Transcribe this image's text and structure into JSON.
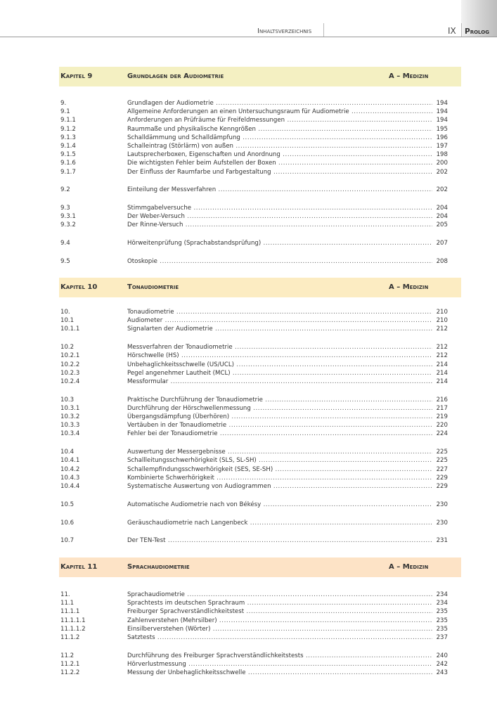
{
  "header": {
    "section": "Inhaltsverzeichnis",
    "page_number": "IX",
    "part": "Prolog"
  },
  "chapters": [
    {
      "label": "Kapitel 9",
      "title": "Grundlagen der Audiometrie",
      "category": "A – Medizin",
      "color": "#f4f0c2",
      "groups": [
        [
          {
            "num": "9.",
            "title": "Grundlagen der Audiometrie",
            "page": "194"
          },
          {
            "num": "9.1",
            "title": "Allgemeine Anforderungen an einen Untersuchungsraum für Audiometrie",
            "page": "194"
          },
          {
            "num": "9.1.1",
            "title": "Anforderungen an Prüfräume für Freifeldmessungen",
            "page": "194"
          },
          {
            "num": "9.1.2",
            "title": "Raummaße und physikalische Kenngrößen",
            "page": "195"
          },
          {
            "num": "9.1.3",
            "title": "Schalldämmung und Schalldämpfung",
            "page": "196"
          },
          {
            "num": "9.1.4",
            "title": "Schalleintrag (Störlärm) von außen",
            "page": "197"
          },
          {
            "num": "9.1.5",
            "title": "Lautsprecherboxen, Eigenschaften und Anordnung",
            "page": "198"
          },
          {
            "num": "9.1.6",
            "title": "Die wichtigsten Fehler beim Aufstellen der Boxen",
            "page": "200"
          },
          {
            "num": "9.1.7",
            "title": "Der Einfluss der Raumfarbe und Farbgestaltung",
            "page": "202"
          }
        ],
        [
          {
            "num": "9.2",
            "title": "Einteilung der Messverfahren",
            "page": "202"
          }
        ],
        [
          {
            "num": "9.3",
            "title": "Stimmgabelversuche",
            "page": "204"
          },
          {
            "num": "9.3.1",
            "title": "Der Weber-Versuch",
            "page": "204"
          },
          {
            "num": "9.3.2",
            "title": "Der Rinne-Versuch",
            "page": "205"
          }
        ],
        [
          {
            "num": "9.4",
            "title": "Hörweitenprüfung (Sprachabstandsprüfung)",
            "page": "207"
          }
        ],
        [
          {
            "num": "9.5",
            "title": "Otoskopie",
            "page": "208"
          }
        ]
      ]
    },
    {
      "label": "Kapitel 10",
      "title": "Tonaudiometrie",
      "category": "A – Medizin",
      "color": "#fcecc2",
      "groups": [
        [
          {
            "num": "10.",
            "title": "Tonaudiometrie",
            "page": "210"
          },
          {
            "num": "10.1",
            "title": "Audiometer",
            "page": "210"
          },
          {
            "num": "10.1.1",
            "title": "Signalarten der Audiometrie",
            "page": "212"
          }
        ],
        [
          {
            "num": "10.2",
            "title": "Messverfahren der Tonaudiometrie",
            "page": "212"
          },
          {
            "num": "10.2.1",
            "title": "Hörschwelle (HS)",
            "page": "212"
          },
          {
            "num": "10.2.2",
            "title": "Unbehaglichkeitsschwelle (US/UCL)",
            "page": "214"
          },
          {
            "num": "10.2.3",
            "title": "Pegel angenehmer Lautheit (MCL)",
            "page": "214"
          },
          {
            "num": "10.2.4",
            "title": "Messformular",
            "page": "214"
          }
        ],
        [
          {
            "num": "10.3",
            "title": "Praktische Durchführung der Tonaudiometrie",
            "page": "216"
          },
          {
            "num": "10.3.1",
            "title": "Durchführung der Hörschwellenmessung",
            "page": "217"
          },
          {
            "num": "10.3.2",
            "title": "Übergangsdämpfung (Überhören)",
            "page": "219"
          },
          {
            "num": "10.3.3",
            "title": "Vertäuben in der Tonaudiometrie",
            "page": "220"
          },
          {
            "num": "10.3.4",
            "title": "Fehler bei der Tonaudiometrie",
            "page": "224"
          }
        ],
        [
          {
            "num": "10.4",
            "title": "Auswertung der Messergebnisse",
            "page": "225"
          },
          {
            "num": "10.4.1",
            "title": "Schallleitungsschwerhörigkeit (SLS, SL-SH)",
            "page": "225"
          },
          {
            "num": "10.4.2",
            "title": "Schallempfindungsschwerhörigkeit (SES, SE-SH)",
            "page": "227"
          },
          {
            "num": "10.4.3",
            "title": "Kombinierte Schwerhörigkeit",
            "page": "229"
          },
          {
            "num": "10.4.4",
            "title": "Systematische Auswertung von Audiogrammen",
            "page": "229"
          }
        ],
        [
          {
            "num": "10.5",
            "title": "Automatische Audiometrie nach von Békésy",
            "page": "230"
          }
        ],
        [
          {
            "num": "10.6",
            "title": "Geräuschaudiometrie nach Langenbeck",
            "page": "230"
          }
        ],
        [
          {
            "num": "10.7",
            "title": "Der TEN-Test",
            "page": "231"
          }
        ]
      ]
    },
    {
      "label": "Kapitel 11",
      "title": "Sprachaudiometrie",
      "category": "A – Medizin",
      "color": "#fde3c6",
      "groups": [
        [
          {
            "num": "11.",
            "title": "Sprachaudiometrie",
            "page": "234"
          },
          {
            "num": "11.1",
            "title": "Sprachtests im deutschen Sprachraum",
            "page": "234"
          },
          {
            "num": "11.1.1",
            "title": "Freiburger Sprachverständlichkeitstest",
            "page": "235"
          },
          {
            "num": "11.1.1.1",
            "title": "Zahlenverstehen (Mehrsilber)",
            "page": "235"
          },
          {
            "num": "11.1.1.2",
            "title": "Einsilberverstehen (Wörter)",
            "page": "235"
          },
          {
            "num": "11.1.2",
            "title": "Satztests",
            "page": "237"
          }
        ],
        [
          {
            "num": "11.2",
            "title": "Durchführung des Freiburger Sprachverständlichkeitstests",
            "page": "240"
          },
          {
            "num": "11.2.1",
            "title": "Hörverlustmessung",
            "page": "242"
          },
          {
            "num": "11.2.2",
            "title": "Messung der Unbehaglichkeitsschwelle",
            "page": "243"
          }
        ]
      ]
    }
  ]
}
